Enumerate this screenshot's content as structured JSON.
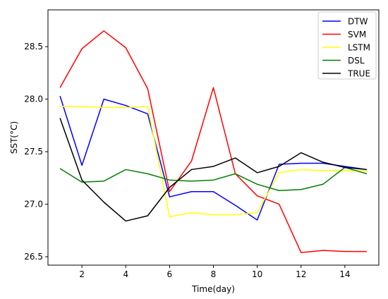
{
  "chart_data": {
    "type": "line",
    "title": "",
    "xlabel": "Time(day)",
    "ylabel": "SST(°C)",
    "xlim": [
      0.45,
      15.55
    ],
    "ylim": [
      26.42,
      28.85
    ],
    "x_ticks": [
      2,
      4,
      6,
      8,
      10,
      12,
      14
    ],
    "x_tick_labels": [
      "2",
      "4",
      "6",
      "8",
      "10",
      "12",
      "14"
    ],
    "y_ticks": [
      26.5,
      27.0,
      27.5,
      28.0,
      28.5
    ],
    "y_tick_labels": [
      "26.5",
      "27.0",
      "27.5",
      "28.0",
      "28.5"
    ],
    "x": [
      1,
      2,
      3,
      4,
      5,
      6,
      7,
      8,
      9,
      10,
      11,
      12,
      13,
      14,
      15
    ],
    "grid": false,
    "legend_position": "top-right",
    "series": [
      {
        "name": "DTW",
        "color": "#0000ff",
        "values": [
          28.03,
          27.37,
          28.0,
          27.94,
          27.86,
          27.07,
          27.12,
          27.12,
          26.99,
          26.85,
          27.38,
          27.39,
          27.39,
          27.36,
          27.33
        ]
      },
      {
        "name": "SVM",
        "color": "#ff0000",
        "values": [
          28.11,
          28.48,
          28.65,
          28.49,
          28.1,
          27.12,
          27.41,
          28.11,
          27.29,
          27.08,
          27.0,
          26.54,
          26.56,
          26.55,
          26.55
        ]
      },
      {
        "name": "LSTM",
        "color": "#ffff00",
        "values": [
          27.93,
          27.93,
          27.92,
          27.92,
          27.93,
          26.88,
          26.92,
          26.9,
          26.9,
          26.92,
          27.3,
          27.33,
          27.32,
          27.32,
          27.32
        ]
      },
      {
        "name": "DSL",
        "color": "#008000",
        "values": [
          27.34,
          27.21,
          27.22,
          27.33,
          27.29,
          27.23,
          27.22,
          27.23,
          27.29,
          27.19,
          27.13,
          27.14,
          27.19,
          27.35,
          27.29
        ]
      },
      {
        "name": "TRUE",
        "color": "#000000",
        "values": [
          27.82,
          27.23,
          27.02,
          26.84,
          26.89,
          27.16,
          27.33,
          27.36,
          27.44,
          27.3,
          27.36,
          27.49,
          27.4,
          27.35,
          27.33
        ]
      }
    ]
  }
}
